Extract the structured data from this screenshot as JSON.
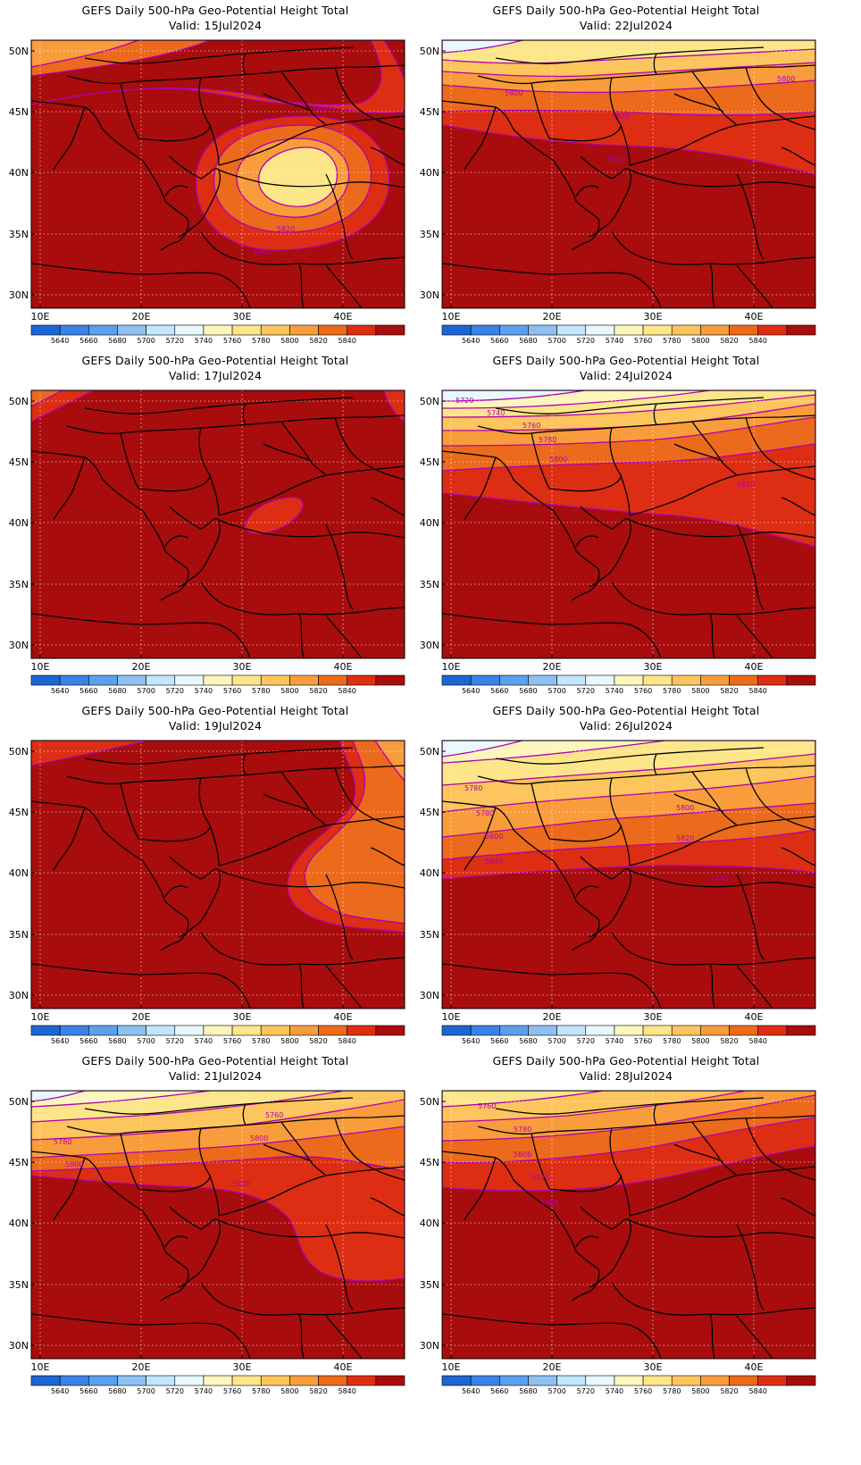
{
  "panel_title": "GEFS Daily 500-hPa Geo-Potential Height Total",
  "valid_prefix": "Valid: ",
  "lat_labels": [
    "50N",
    "45N",
    "40N",
    "35N",
    "30N"
  ],
  "lon_labels": [
    "10E",
    "20E",
    "30E",
    "40E"
  ],
  "colorbar": {
    "colors": [
      "#1c66d4",
      "#3a83e6",
      "#5aa0ee",
      "#8ec0f2",
      "#c2e6fb",
      "#e8f8fe",
      "#fdf6bc",
      "#fde68a",
      "#fdc55e",
      "#f99d3c",
      "#ec6a1c",
      "#dd2e14",
      "#a80c0c"
    ],
    "labels": [
      "5640",
      "5660",
      "5680",
      "5700",
      "5720",
      "5740",
      "5760",
      "5780",
      "5800",
      "5820",
      "5840"
    ]
  },
  "panels": [
    {
      "date": "15Jul2024",
      "contour_labels": [
        "5840",
        "5820",
        "5840"
      ]
    },
    {
      "date": "22Jul2024",
      "contour_labels": [
        "5800",
        "5820",
        "5840",
        "5800"
      ]
    },
    {
      "date": "17Jul2024",
      "contour_labels": []
    },
    {
      "date": "24Jul2024",
      "contour_labels": [
        "5720",
        "5740",
        "5760",
        "5780",
        "5800",
        "5820"
      ]
    },
    {
      "date": "19Jul2024",
      "contour_labels": []
    },
    {
      "date": "26Jul2024",
      "contour_labels": [
        "5780",
        "5780",
        "5800",
        "5800",
        "5820",
        "5840",
        "5840"
      ]
    },
    {
      "date": "21Jul2024",
      "contour_labels": [
        "5760",
        "5780",
        "5800",
        "5800",
        "5820"
      ]
    },
    {
      "date": "28Jul2024",
      "contour_labels": [
        "5760",
        "5780",
        "5800",
        "5820",
        "5840"
      ]
    }
  ]
}
